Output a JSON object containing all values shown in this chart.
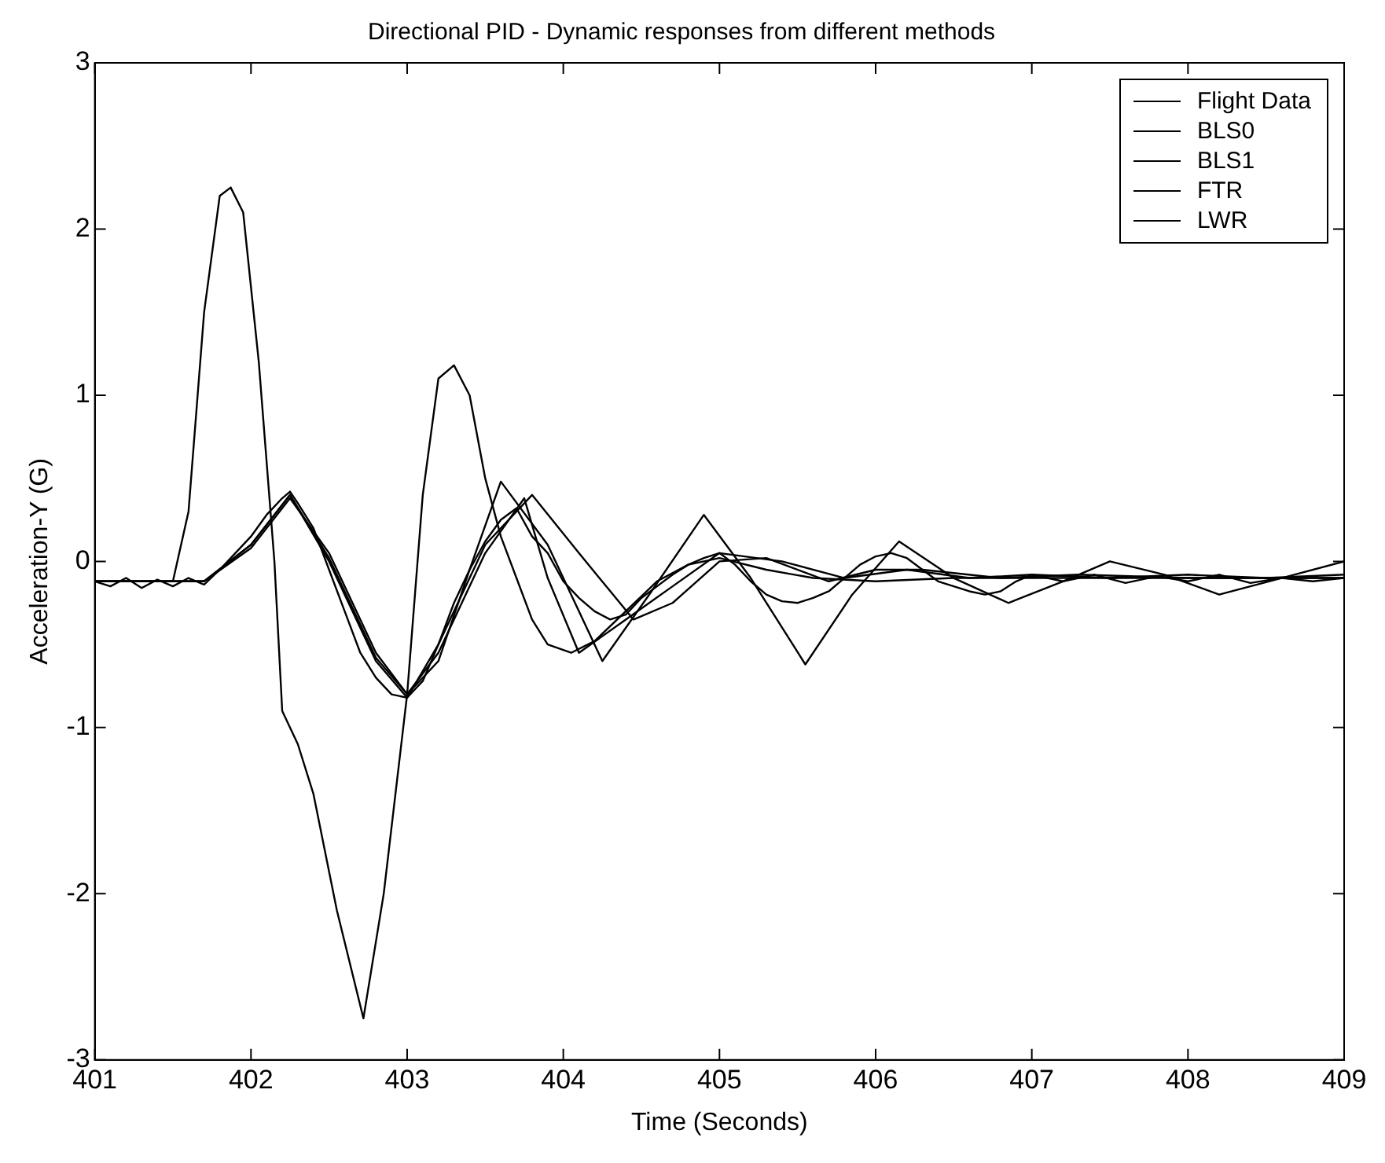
{
  "chart_data": {
    "type": "line",
    "title": "Directional PID - Dynamic responses from different methods",
    "xlabel": "Time (Seconds)",
    "ylabel": "Acceleration-Y (G)",
    "xlim": [
      401,
      409
    ],
    "xticks": [
      401,
      402,
      403,
      404,
      405,
      406,
      407,
      408,
      409
    ],
    "ylim": [
      -3,
      3
    ],
    "yticks": [
      -3,
      -2,
      -1,
      0,
      1,
      2,
      3
    ],
    "legend": "top right",
    "grid": false,
    "series": [
      {
        "name": "Flight Data",
        "color": "#000000",
        "x": [
          401,
          401.1,
          401.2,
          401.3,
          401.4,
          401.5,
          401.6,
          401.7,
          401.8,
          401.9,
          402,
          402.1,
          402.2,
          402.25,
          402.3,
          402.4,
          402.5,
          402.6,
          402.7,
          402.8,
          402.9,
          403,
          403.1,
          403.2,
          403.3,
          403.4,
          403.5,
          403.6,
          403.7,
          403.8,
          403.9,
          404,
          404.1,
          404.2,
          404.3,
          404.4,
          404.5,
          404.6,
          404.7,
          404.8,
          404.9,
          405,
          405.1,
          405.2,
          405.3,
          405.4,
          405.5,
          405.6,
          405.7,
          405.8,
          405.9,
          406,
          406.1,
          406.2,
          406.3,
          406.4,
          406.5,
          406.6,
          406.7,
          406.8,
          406.9,
          407,
          407.2,
          407.4,
          407.6,
          407.8,
          408,
          408.2,
          408.4,
          408.6,
          408.8,
          409
        ],
        "values": [
          -0.12,
          -0.15,
          -0.1,
          -0.16,
          -0.11,
          -0.15,
          -0.1,
          -0.14,
          -0.05,
          0.05,
          0.15,
          0.28,
          0.38,
          0.42,
          0.35,
          0.2,
          -0.05,
          -0.3,
          -0.55,
          -0.7,
          -0.8,
          -0.82,
          -0.72,
          -0.5,
          -0.25,
          -0.05,
          0.12,
          0.25,
          0.32,
          0.15,
          0.05,
          -0.12,
          -0.22,
          -0.3,
          -0.35,
          -0.32,
          -0.22,
          -0.15,
          -0.08,
          -0.02,
          0.02,
          0.05,
          -0.02,
          -0.12,
          -0.2,
          -0.24,
          -0.25,
          -0.22,
          -0.18,
          -0.1,
          -0.02,
          0.03,
          0.05,
          0.02,
          -0.05,
          -0.12,
          -0.15,
          -0.18,
          -0.2,
          -0.18,
          -0.12,
          -0.08,
          -0.12,
          -0.08,
          -0.13,
          -0.09,
          -0.12,
          -0.08,
          -0.13,
          -0.1,
          -0.12,
          -0.1
        ]
      },
      {
        "name": "BLS0",
        "color": "#000000",
        "x": [
          401,
          401.5,
          401.6,
          401.7,
          401.8,
          401.87,
          401.95,
          402.05,
          402.15,
          402.2,
          402.3,
          402.4,
          402.55,
          402.72,
          402.85,
          403,
          403.1,
          403.2,
          403.3,
          403.4,
          403.5,
          403.6,
          403.7,
          403.8,
          403.9,
          404.05,
          404.2,
          404.4,
          404.6,
          404.8,
          405,
          405.3,
          405.6,
          406,
          406.5,
          407,
          407.5,
          408,
          408.5,
          409
        ],
        "values": [
          -0.12,
          -0.12,
          0.3,
          1.5,
          2.2,
          2.25,
          2.1,
          1.2,
          0,
          -0.9,
          -1.1,
          -1.4,
          -2.1,
          -2.75,
          -2,
          -0.8,
          0.4,
          1.1,
          1.18,
          1,
          0.5,
          0.15,
          -0.1,
          -0.35,
          -0.5,
          -0.55,
          -0.48,
          -0.3,
          -0.12,
          -0.02,
          0.02,
          -0.05,
          -0.1,
          -0.12,
          -0.1,
          -0.1,
          -0.1,
          -0.1,
          -0.1,
          -0.1
        ]
      },
      {
        "name": "BLS1",
        "color": "#000000",
        "x": [
          401,
          401.7,
          402,
          402.25,
          402.5,
          402.8,
          403,
          403.2,
          403.5,
          403.8,
          404.1,
          404.45,
          404.7,
          405,
          405.3,
          405.7,
          406,
          406.3,
          406.8,
          407.3,
          408,
          408.5,
          409
        ],
        "values": [
          -0.12,
          -0.12,
          0.1,
          0.4,
          0,
          -0.6,
          -0.82,
          -0.5,
          0.1,
          0.4,
          0.05,
          -0.35,
          -0.25,
          0,
          0.02,
          -0.12,
          -0.05,
          -0.05,
          -0.1,
          -0.08,
          -0.1,
          -0.1,
          -0.1
        ]
      },
      {
        "name": "FTR",
        "color": "#000000",
        "x": [
          401,
          401.7,
          402,
          402.25,
          402.5,
          402.8,
          403,
          403.2,
          403.4,
          403.6,
          403.9,
          404.25,
          404.55,
          404.9,
          405.2,
          405.55,
          405.85,
          406.15,
          406.5,
          406.85,
          407.2,
          407.5,
          407.85,
          408.2,
          408.6,
          409
        ],
        "values": [
          -0.12,
          -0.12,
          0.08,
          0.38,
          0.05,
          -0.55,
          -0.8,
          -0.6,
          -0.05,
          0.48,
          0.1,
          -0.6,
          -0.2,
          0.28,
          -0.1,
          -0.62,
          -0.2,
          0.12,
          -0.1,
          -0.25,
          -0.12,
          0,
          -0.08,
          -0.2,
          -0.1,
          0
        ]
      },
      {
        "name": "LWR",
        "color": "#000000",
        "x": [
          401,
          401.7,
          402,
          402.25,
          402.5,
          402.8,
          403,
          403.2,
          403.5,
          403.75,
          403.9,
          404.1,
          404.4,
          404.7,
          405,
          405.4,
          405.8,
          406.2,
          406.6,
          407,
          407.5,
          408,
          408.5,
          409
        ],
        "values": [
          -0.12,
          -0.12,
          0.1,
          0.4,
          0.02,
          -0.58,
          -0.8,
          -0.55,
          0.05,
          0.38,
          -0.1,
          -0.55,
          -0.35,
          -0.15,
          0.05,
          0,
          -0.1,
          -0.05,
          -0.1,
          -0.08,
          -0.1,
          -0.08,
          -0.1,
          -0.08
        ]
      }
    ]
  }
}
